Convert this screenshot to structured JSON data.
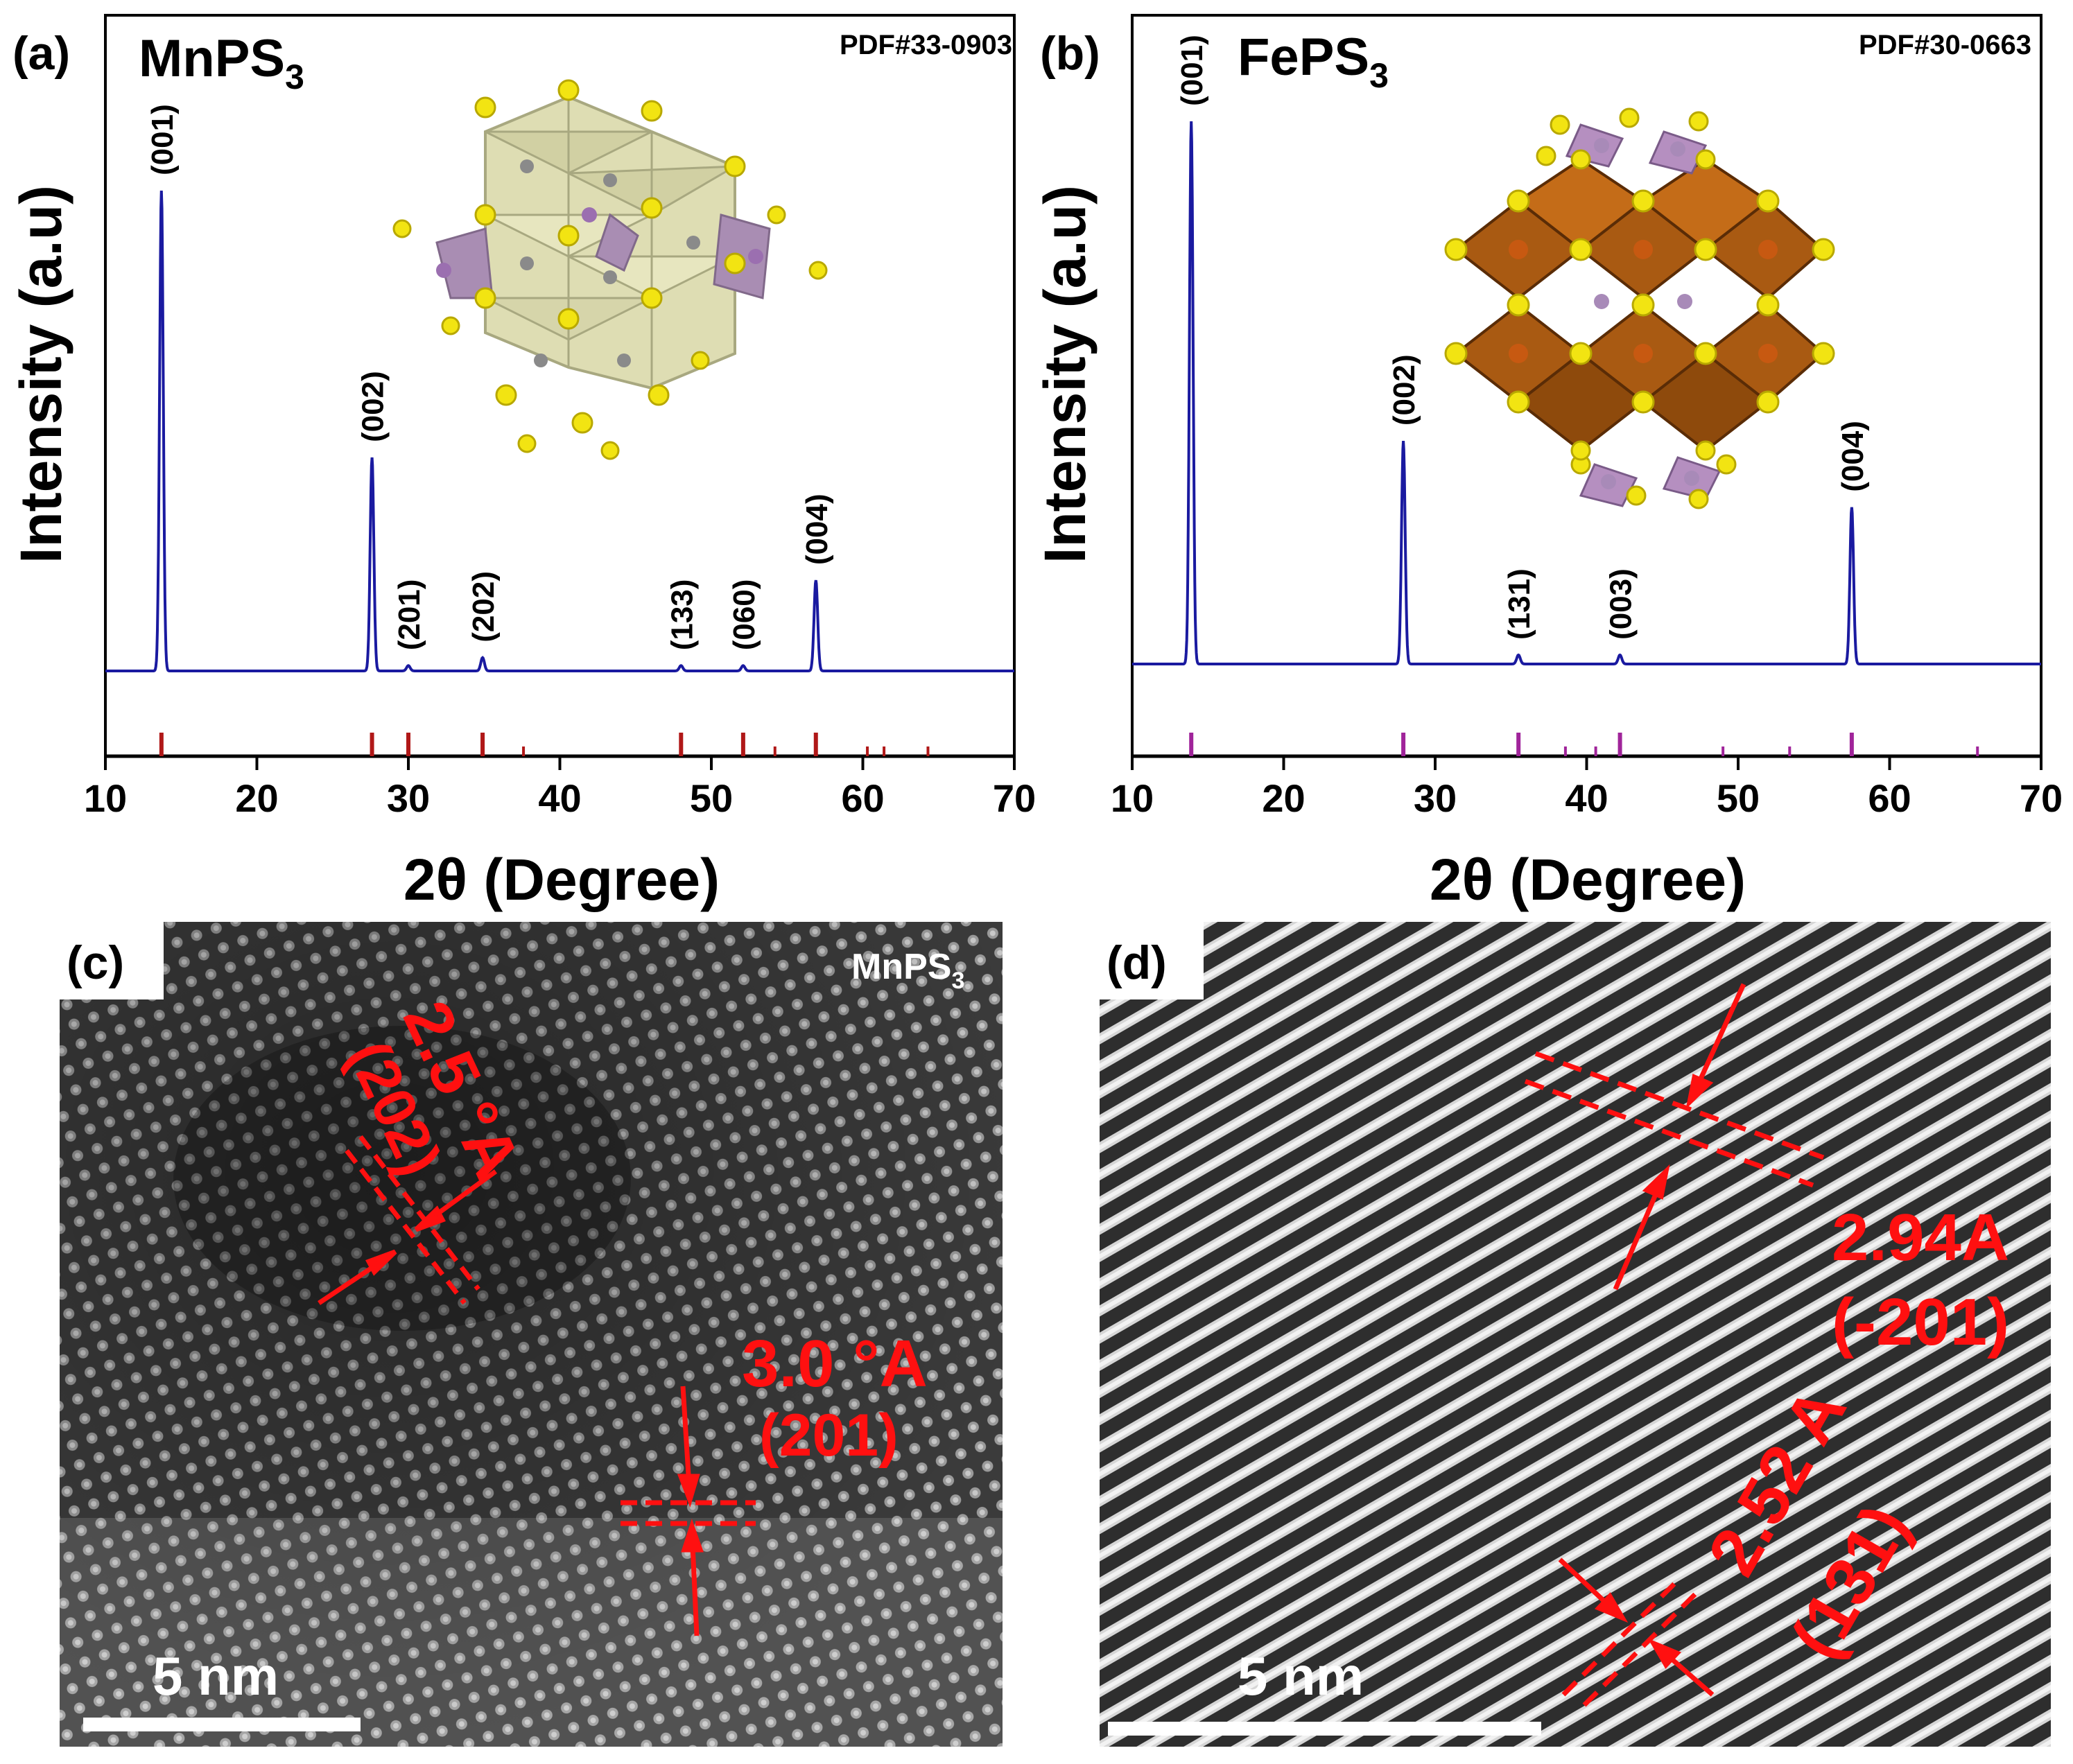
{
  "figure_title": "",
  "colors": {
    "xrd_line": "#1a1aa0",
    "ref_mn": "#b01818",
    "ref_fe": "#a0249a",
    "annotation": "#ff1010",
    "tem_dark": "#4a4a4a",
    "tem_light": "#d8d8d8"
  },
  "panels": {
    "a": {
      "tag": "(a)",
      "compound_base": "MnPS",
      "compound_sub": "3",
      "pdf": "PDF#33-0903"
    },
    "b": {
      "tag": "(b)",
      "compound_base": "FePS",
      "compound_sub": "3",
      "pdf": "PDF#30-0663"
    },
    "c": {
      "tag": "(c)",
      "corner_label_base": "MnPS",
      "corner_label_sub": "3",
      "scale_bar": "5 nm",
      "spacing1": "2.5 °A",
      "plane1": "(202)",
      "spacing2": "3.0 °A",
      "plane2": "(201)"
    },
    "d": {
      "tag": "(d)",
      "scale_bar": "5 nm",
      "spacing1": "2.94A",
      "plane1": "(-201)",
      "spacing2": "2.52 A",
      "plane2": "(131)"
    }
  },
  "chart_data": [
    {
      "type": "line",
      "panel": "a",
      "title": "MnPS3",
      "xlabel": "2θ (Degree)",
      "ylabel": "Intensity (a.u)",
      "xlim": [
        10,
        70
      ],
      "ylim": [
        0,
        100
      ],
      "xticks": [
        10,
        20,
        30,
        40,
        50,
        60,
        70
      ],
      "baseline": 10,
      "peaks": [
        {
          "x": 13.7,
          "y": 100,
          "label": "(001)"
        },
        {
          "x": 27.6,
          "y": 50,
          "label": "(002)"
        },
        {
          "x": 30.0,
          "y": 11,
          "label": "(201)"
        },
        {
          "x": 34.9,
          "y": 12.5,
          "label": "(202)"
        },
        {
          "x": 48.0,
          "y": 11,
          "label": "(133)"
        },
        {
          "x": 52.1,
          "y": 11,
          "label": "(060)"
        },
        {
          "x": 56.9,
          "y": 27,
          "label": "(004)"
        }
      ],
      "reference_lines": [
        13.7,
        27.6,
        30.0,
        34.9,
        37.6,
        48.0,
        52.1,
        54.2,
        56.9,
        60.3,
        61.4,
        64.3
      ]
    },
    {
      "type": "line",
      "panel": "b",
      "title": "FePS3",
      "xlabel": "2θ (Degree)",
      "ylabel": "Intensity (a.u)",
      "xlim": [
        10,
        70
      ],
      "ylim": [
        0,
        100
      ],
      "xticks": [
        10,
        20,
        30,
        40,
        50,
        60,
        70
      ],
      "baseline": 10,
      "peaks": [
        {
          "x": 13.9,
          "y": 100,
          "label": "(001)"
        },
        {
          "x": 27.9,
          "y": 47,
          "label": "(002)"
        },
        {
          "x": 35.5,
          "y": 11.5,
          "label": "(131)"
        },
        {
          "x": 42.2,
          "y": 11.5,
          "label": "(003)"
        },
        {
          "x": 57.5,
          "y": 36,
          "label": "(004)"
        }
      ],
      "reference_lines": [
        13.9,
        27.9,
        35.5,
        38.6,
        40.6,
        42.2,
        49.0,
        53.4,
        57.5,
        65.8
      ]
    }
  ]
}
